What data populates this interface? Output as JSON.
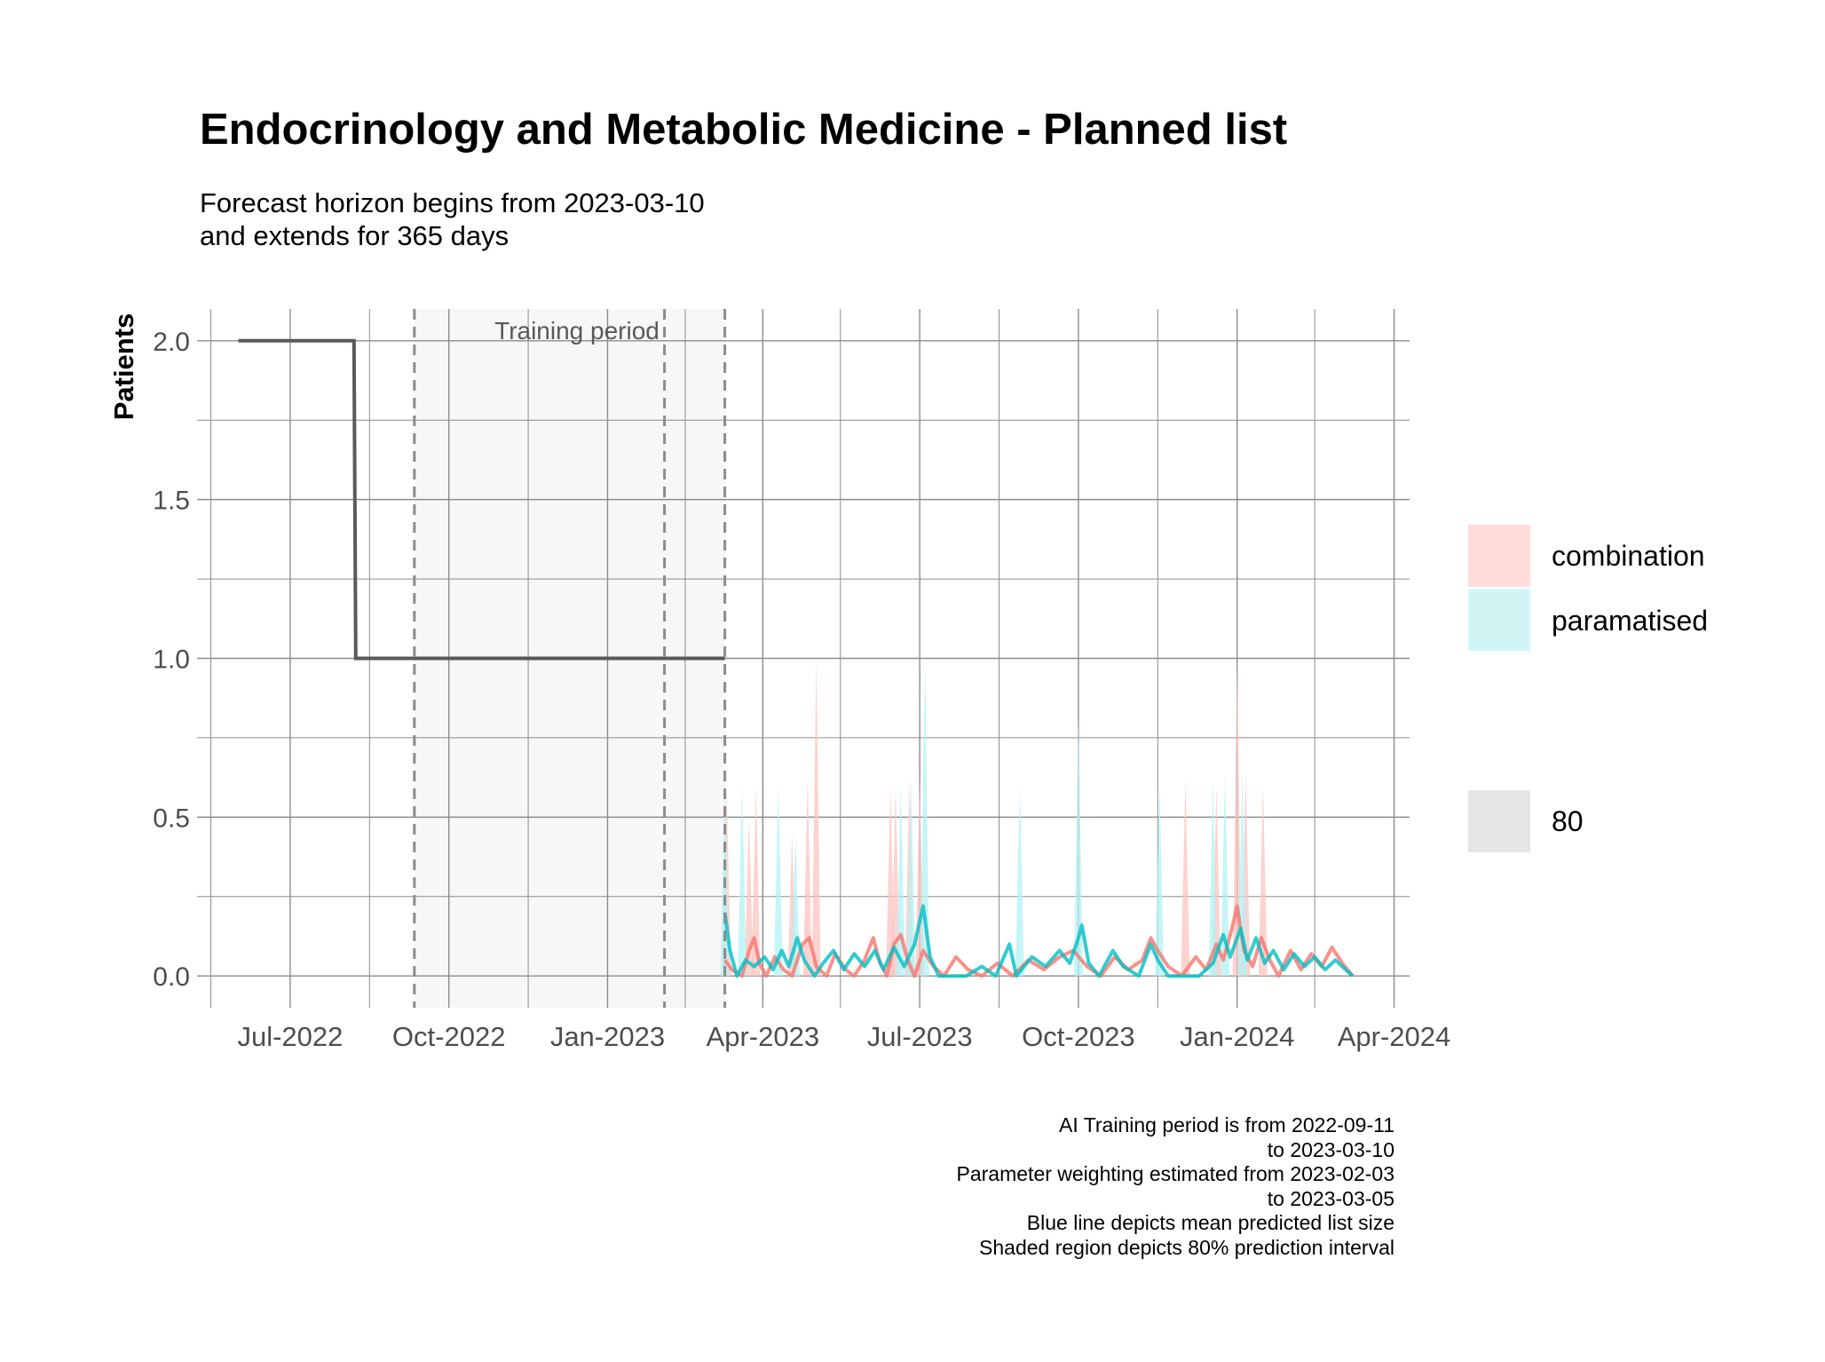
{
  "title": "Endocrinology and Metabolic Medicine - Planned list",
  "subtitle": "Forecast horizon begins from 2023-03-10\nand extends for 365 days",
  "caption": "AI Training period is from 2022-09-11\nto 2023-03-10\nParameter weighting estimated from 2023-02-03\nto 2023-03-05\nBlue line depicts mean predicted list size\nShaded region depicts 80% prediction interval",
  "chart_data": {
    "type": "line",
    "ylabel": "Patients",
    "xlabel": "",
    "xlim": [
      "2022-05-08",
      "2024-04-10"
    ],
    "ylim": [
      -0.1,
      2.1
    ],
    "y_ticks": [
      0.0,
      0.5,
      1.0,
      1.5,
      2.0
    ],
    "y_tick_labels": [
      "0.0",
      "0.5",
      "1.0",
      "1.5",
      "2.0"
    ],
    "x_ticks": [
      "2022-07-01",
      "2022-10-01",
      "2023-01-01",
      "2023-04-01",
      "2023-07-01",
      "2023-10-01",
      "2024-01-01",
      "2024-04-01"
    ],
    "x_tick_labels": [
      "Jul-2022",
      "Oct-2022",
      "Jan-2023",
      "Apr-2023",
      "Jul-2023",
      "Oct-2023",
      "Jan-2024",
      "Apr-2024"
    ],
    "grid": true,
    "training_period": {
      "start": "2022-09-11",
      "end": "2023-03-10",
      "label": "Training period"
    },
    "vlines_dashed": [
      "2022-09-11",
      "2023-02-03",
      "2023-03-10"
    ],
    "colors": {
      "observed": "#595959",
      "combination": "#F8766D",
      "paramatised": "#00BFC4",
      "interval": "#E5E5E5",
      "training_shade": "#F7F7F7"
    },
    "observed": {
      "name": "",
      "points": [
        [
          "2022-06-01",
          2.0
        ],
        [
          "2022-08-07",
          2.0
        ],
        [
          "2022-08-08",
          1.0
        ],
        [
          "2023-03-10",
          1.0
        ]
      ]
    },
    "series": [
      {
        "name": "combination",
        "mean": [
          [
            "2023-03-10",
            0.05
          ],
          [
            "2023-03-14",
            0.02
          ],
          [
            "2023-03-20",
            0.0
          ],
          [
            "2023-03-24",
            0.08
          ],
          [
            "2023-03-27",
            0.12
          ],
          [
            "2023-03-30",
            0.04
          ],
          [
            "2023-04-03",
            0.0
          ],
          [
            "2023-04-08",
            0.06
          ],
          [
            "2023-04-13",
            0.02
          ],
          [
            "2023-04-18",
            0.0
          ],
          [
            "2023-04-24",
            0.1
          ],
          [
            "2023-04-28",
            0.12
          ],
          [
            "2023-05-02",
            0.03
          ],
          [
            "2023-05-08",
            0.0
          ],
          [
            "2023-05-13",
            0.07
          ],
          [
            "2023-05-19",
            0.02
          ],
          [
            "2023-05-24",
            0.0
          ],
          [
            "2023-05-30",
            0.05
          ],
          [
            "2023-06-04",
            0.12
          ],
          [
            "2023-06-08",
            0.04
          ],
          [
            "2023-06-12",
            0.0
          ],
          [
            "2023-06-16",
            0.1
          ],
          [
            "2023-06-20",
            0.13
          ],
          [
            "2023-06-24",
            0.05
          ],
          [
            "2023-06-28",
            0.0
          ],
          [
            "2023-07-03",
            0.08
          ],
          [
            "2023-07-09",
            0.03
          ],
          [
            "2023-07-15",
            0.0
          ],
          [
            "2023-07-22",
            0.06
          ],
          [
            "2023-07-29",
            0.02
          ],
          [
            "2023-08-06",
            0.0
          ],
          [
            "2023-08-15",
            0.04
          ],
          [
            "2023-08-24",
            0.0
          ],
          [
            "2023-09-02",
            0.05
          ],
          [
            "2023-09-11",
            0.02
          ],
          [
            "2023-09-20",
            0.06
          ],
          [
            "2023-09-28",
            0.08
          ],
          [
            "2023-10-06",
            0.03
          ],
          [
            "2023-10-14",
            0.0
          ],
          [
            "2023-10-22",
            0.06
          ],
          [
            "2023-10-30",
            0.02
          ],
          [
            "2023-11-07",
            0.05
          ],
          [
            "2023-11-12",
            0.12
          ],
          [
            "2023-11-16",
            0.08
          ],
          [
            "2023-11-22",
            0.03
          ],
          [
            "2023-11-30",
            0.0
          ],
          [
            "2023-12-08",
            0.06
          ],
          [
            "2023-12-14",
            0.02
          ],
          [
            "2023-12-20",
            0.1
          ],
          [
            "2023-12-24",
            0.05
          ],
          [
            "2023-12-29",
            0.15
          ],
          [
            "2024-01-01",
            0.22
          ],
          [
            "2024-01-05",
            0.08
          ],
          [
            "2024-01-10",
            0.03
          ],
          [
            "2024-01-15",
            0.12
          ],
          [
            "2024-01-20",
            0.05
          ],
          [
            "2024-01-25",
            0.0
          ],
          [
            "2024-02-01",
            0.08
          ],
          [
            "2024-02-07",
            0.02
          ],
          [
            "2024-02-13",
            0.07
          ],
          [
            "2024-02-19",
            0.03
          ],
          [
            "2024-02-25",
            0.09
          ],
          [
            "2024-03-02",
            0.04
          ],
          [
            "2024-03-08",
            0.0
          ]
        ],
        "interval_spikes": [
          [
            "2023-03-11",
            0.6
          ],
          [
            "2023-03-24",
            0.5
          ],
          [
            "2023-03-28",
            0.6
          ],
          [
            "2023-04-18",
            0.45
          ],
          [
            "2023-04-27",
            0.62
          ],
          [
            "2023-05-02",
            1.0
          ],
          [
            "2023-06-14",
            0.6
          ],
          [
            "2023-06-17",
            0.6
          ],
          [
            "2023-06-25",
            0.62
          ],
          [
            "2023-07-01",
            0.62
          ],
          [
            "2023-12-02",
            0.62
          ],
          [
            "2023-12-20",
            0.6
          ],
          [
            "2024-01-01",
            1.0
          ],
          [
            "2024-01-06",
            0.64
          ],
          [
            "2024-01-16",
            0.6
          ]
        ]
      },
      {
        "name": "paramatised",
        "mean": [
          [
            "2023-03-10",
            0.2
          ],
          [
            "2023-03-13",
            0.08
          ],
          [
            "2023-03-17",
            0.0
          ],
          [
            "2023-03-22",
            0.05
          ],
          [
            "2023-03-27",
            0.03
          ],
          [
            "2023-04-02",
            0.06
          ],
          [
            "2023-04-07",
            0.02
          ],
          [
            "2023-04-12",
            0.08
          ],
          [
            "2023-04-16",
            0.03
          ],
          [
            "2023-04-21",
            0.12
          ],
          [
            "2023-04-25",
            0.05
          ],
          [
            "2023-05-01",
            0.0
          ],
          [
            "2023-05-06",
            0.04
          ],
          [
            "2023-05-12",
            0.08
          ],
          [
            "2023-05-18",
            0.02
          ],
          [
            "2023-05-24",
            0.07
          ],
          [
            "2023-05-30",
            0.03
          ],
          [
            "2023-06-05",
            0.08
          ],
          [
            "2023-06-10",
            0.02
          ],
          [
            "2023-06-16",
            0.09
          ],
          [
            "2023-06-22",
            0.03
          ],
          [
            "2023-06-28",
            0.1
          ],
          [
            "2023-07-03",
            0.22
          ],
          [
            "2023-07-07",
            0.06
          ],
          [
            "2023-07-12",
            0.0
          ],
          [
            "2023-07-20",
            0.0
          ],
          [
            "2023-07-28",
            0.0
          ],
          [
            "2023-08-06",
            0.03
          ],
          [
            "2023-08-14",
            0.0
          ],
          [
            "2023-08-22",
            0.1
          ],
          [
            "2023-08-26",
            0.0
          ],
          [
            "2023-09-04",
            0.06
          ],
          [
            "2023-09-12",
            0.03
          ],
          [
            "2023-09-20",
            0.08
          ],
          [
            "2023-09-26",
            0.04
          ],
          [
            "2023-10-01",
            0.12
          ],
          [
            "2023-10-03",
            0.16
          ],
          [
            "2023-10-07",
            0.04
          ],
          [
            "2023-10-13",
            0.0
          ],
          [
            "2023-10-21",
            0.08
          ],
          [
            "2023-10-27",
            0.03
          ],
          [
            "2023-11-05",
            0.0
          ],
          [
            "2023-11-12",
            0.1
          ],
          [
            "2023-11-16",
            0.05
          ],
          [
            "2023-11-22",
            0.0
          ],
          [
            "2023-12-01",
            0.0
          ],
          [
            "2023-12-10",
            0.0
          ],
          [
            "2023-12-18",
            0.04
          ],
          [
            "2023-12-24",
            0.13
          ],
          [
            "2023-12-28",
            0.06
          ],
          [
            "2024-01-03",
            0.15
          ],
          [
            "2024-01-07",
            0.05
          ],
          [
            "2024-01-12",
            0.12
          ],
          [
            "2024-01-17",
            0.04
          ],
          [
            "2024-01-22",
            0.08
          ],
          [
            "2024-01-28",
            0.02
          ],
          [
            "2024-02-03",
            0.07
          ],
          [
            "2024-02-09",
            0.03
          ],
          [
            "2024-02-15",
            0.06
          ],
          [
            "2024-02-21",
            0.02
          ],
          [
            "2024-02-27",
            0.05
          ],
          [
            "2024-03-04",
            0.02
          ],
          [
            "2024-03-08",
            0.0
          ]
        ],
        "interval_spikes": [
          [
            "2023-03-10",
            0.62
          ],
          [
            "2023-03-20",
            0.6
          ],
          [
            "2023-04-10",
            0.6
          ],
          [
            "2023-04-20",
            0.45
          ],
          [
            "2023-06-20",
            0.6
          ],
          [
            "2023-06-26",
            0.62
          ],
          [
            "2023-07-04",
            1.0
          ],
          [
            "2023-08-28",
            0.6
          ],
          [
            "2023-10-01",
            0.82
          ],
          [
            "2023-11-17",
            0.6
          ],
          [
            "2023-12-18",
            0.62
          ],
          [
            "2023-12-25",
            0.64
          ],
          [
            "2024-01-04",
            0.64
          ]
        ]
      }
    ],
    "legend": {
      "position": "right",
      "entries": [
        "combination",
        "paramatised"
      ],
      "interval_label": "80"
    }
  }
}
